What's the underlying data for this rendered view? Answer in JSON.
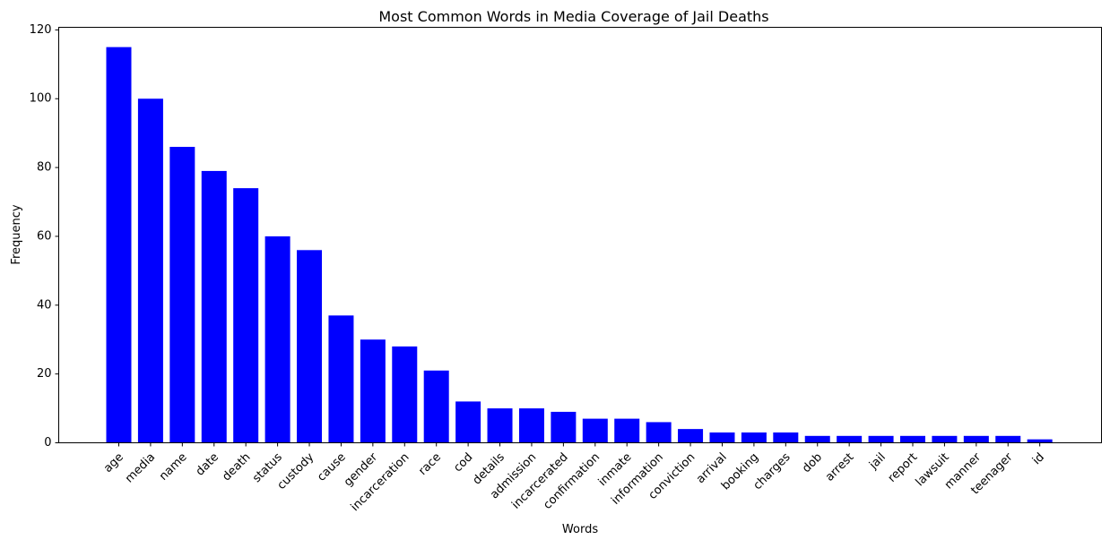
{
  "chart_data": {
    "type": "bar",
    "title": "Most Common Words in Media Coverage of Jail Deaths",
    "xlabel": "Words",
    "ylabel": "Frequency",
    "categories": [
      "age",
      "media",
      "name",
      "date",
      "death",
      "status",
      "custody",
      "cause",
      "gender",
      "incarceration",
      "race",
      "cod",
      "details",
      "admission",
      "incarcerated",
      "confirmation",
      "inmate",
      "information",
      "conviction",
      "arrival",
      "booking",
      "charges",
      "dob",
      "arrest",
      "jail",
      "report",
      "lawsuit",
      "manner",
      "teenager",
      "id"
    ],
    "values": [
      115,
      100,
      86,
      79,
      74,
      60,
      56,
      37,
      30,
      28,
      21,
      12,
      10,
      10,
      9,
      7,
      7,
      6,
      4,
      3,
      3,
      3,
      2,
      2,
      2,
      2,
      2,
      2,
      2,
      1
    ],
    "ylim": [
      0,
      120.75
    ],
    "yticks": [
      0,
      20,
      40,
      60,
      80,
      100,
      120
    ],
    "bar_color": "#0000ff",
    "grid": false,
    "legend": "none",
    "xtick_rotation": 45
  }
}
